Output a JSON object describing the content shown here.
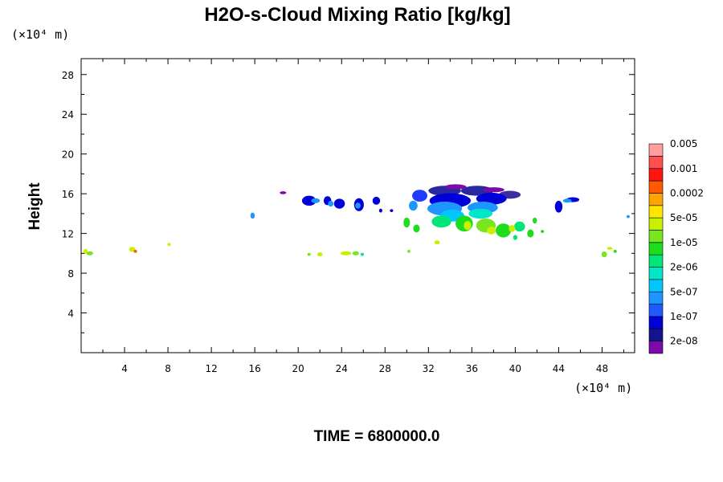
{
  "chart_data": {
    "type": "heatmap",
    "title": "H2O-s-Cloud Mixing Ratio [kg/kg]",
    "ylabel": "Height",
    "x_unit": "(×10⁴ m)",
    "y_unit": "(×10⁴ m)",
    "footer": "TIME = 6800000.0",
    "xlim": [
      0,
      51
    ],
    "ylim": [
      0,
      29.6
    ],
    "x_ticks": [
      {
        "v": 4,
        "label": "4"
      },
      {
        "v": 8,
        "label": "8"
      },
      {
        "v": 12,
        "label": "12"
      },
      {
        "v": 16,
        "label": "16"
      },
      {
        "v": 20,
        "label": "20"
      },
      {
        "v": 24,
        "label": "24"
      },
      {
        "v": 28,
        "label": "28"
      },
      {
        "v": 32,
        "label": "32"
      },
      {
        "v": 36,
        "label": "36"
      },
      {
        "v": 40,
        "label": "40"
      },
      {
        "v": 44,
        "label": "44"
      },
      {
        "v": 48,
        "label": "48"
      }
    ],
    "y_ticks": [
      {
        "v": 4,
        "label": "4"
      },
      {
        "v": 8,
        "label": "8"
      },
      {
        "v": 12,
        "label": "12"
      },
      {
        "v": 16,
        "label": "16"
      },
      {
        "v": 20,
        "label": "20"
      },
      {
        "v": 24,
        "label": "24"
      },
      {
        "v": 28,
        "label": "28"
      }
    ],
    "colorbar": {
      "colors": [
        "#7b0aa8",
        "#14148c",
        "#0000d8",
        "#1e5aff",
        "#1e96ff",
        "#00c8ff",
        "#00e6c8",
        "#00e678",
        "#1edc1e",
        "#78e61e",
        "#c8f000",
        "#ffe600",
        "#ffa500",
        "#ff5a00",
        "#ff1414",
        "#ff5050",
        "#ffa0a0"
      ],
      "labels": [
        "2e-08",
        "1e-07",
        "5e-07",
        "2e-06",
        "1e-05",
        "5e-05",
        "0.0002",
        "0.001",
        "0.005"
      ]
    },
    "blobs": [
      {
        "x": 31.2,
        "y": 15.8,
        "w": 1.4,
        "h": 1.2,
        "c": "#1e3cff"
      },
      {
        "x": 33.5,
        "y": 16.3,
        "w": 3.0,
        "h": 1.0,
        "c": "#2828a0"
      },
      {
        "x": 36.5,
        "y": 16.3,
        "w": 3.0,
        "h": 1.0,
        "c": "#2828a0"
      },
      {
        "x": 39.5,
        "y": 15.9,
        "w": 2.0,
        "h": 0.8,
        "c": "#3c2ca0"
      },
      {
        "x": 34.5,
        "y": 16.7,
        "w": 2.0,
        "h": 0.5,
        "c": "#7b0aa8"
      },
      {
        "x": 38.0,
        "y": 16.4,
        "w": 2.0,
        "h": 0.5,
        "c": "#7b0aa8"
      },
      {
        "x": 34.0,
        "y": 15.3,
        "w": 3.8,
        "h": 1.5,
        "c": "#0000d8"
      },
      {
        "x": 37.8,
        "y": 15.5,
        "w": 2.8,
        "h": 1.2,
        "c": "#0000d8"
      },
      {
        "x": 33.5,
        "y": 14.5,
        "w": 3.2,
        "h": 1.4,
        "c": "#1e96ff"
      },
      {
        "x": 37.0,
        "y": 14.6,
        "w": 2.8,
        "h": 1.2,
        "c": "#1e96ff"
      },
      {
        "x": 34.2,
        "y": 13.8,
        "w": 2.2,
        "h": 1.2,
        "c": "#00c8ff"
      },
      {
        "x": 36.8,
        "y": 14.0,
        "w": 2.2,
        "h": 1.0,
        "c": "#00e6c8"
      },
      {
        "x": 33.2,
        "y": 13.2,
        "w": 1.8,
        "h": 1.2,
        "c": "#00e678"
      },
      {
        "x": 35.3,
        "y": 13.0,
        "w": 1.6,
        "h": 1.6,
        "c": "#1edc1e"
      },
      {
        "x": 37.3,
        "y": 12.8,
        "w": 1.8,
        "h": 1.4,
        "c": "#78e61e"
      },
      {
        "x": 38.9,
        "y": 12.3,
        "w": 1.4,
        "h": 1.4,
        "c": "#1edc1e"
      },
      {
        "x": 40.4,
        "y": 12.7,
        "w": 1.0,
        "h": 1.0,
        "c": "#00e678"
      },
      {
        "x": 35.6,
        "y": 12.8,
        "w": 0.7,
        "h": 0.9,
        "c": "#c8f000"
      },
      {
        "x": 37.8,
        "y": 12.3,
        "w": 0.8,
        "h": 0.8,
        "c": "#c8f000"
      },
      {
        "x": 39.7,
        "y": 12.5,
        "w": 0.6,
        "h": 0.7,
        "c": "#c8f000"
      },
      {
        "x": 30.0,
        "y": 13.1,
        "w": 0.6,
        "h": 1.0,
        "c": "#1edc1e"
      },
      {
        "x": 30.9,
        "y": 12.5,
        "w": 0.6,
        "h": 0.8,
        "c": "#1edc1e"
      },
      {
        "x": 41.4,
        "y": 12.0,
        "w": 0.6,
        "h": 0.8,
        "c": "#1edc1e"
      },
      {
        "x": 41.8,
        "y": 13.3,
        "w": 0.4,
        "h": 0.6,
        "c": "#1edc1e"
      },
      {
        "x": 40.0,
        "y": 11.6,
        "w": 0.4,
        "h": 0.5,
        "c": "#00e678"
      },
      {
        "x": 42.5,
        "y": 12.2,
        "w": 0.3,
        "h": 0.3,
        "c": "#1edc1e"
      },
      {
        "x": 30.6,
        "y": 14.8,
        "w": 0.8,
        "h": 1.0,
        "c": "#1e96ff"
      },
      {
        "x": 21.0,
        "y": 15.3,
        "w": 1.3,
        "h": 1.0,
        "c": "#0000d8"
      },
      {
        "x": 22.7,
        "y": 15.3,
        "w": 0.7,
        "h": 0.9,
        "c": "#0000d8"
      },
      {
        "x": 23.0,
        "y": 15.0,
        "w": 0.5,
        "h": 0.6,
        "c": "#1e96ff"
      },
      {
        "x": 21.6,
        "y": 15.3,
        "w": 0.8,
        "h": 0.5,
        "c": "#1e96ff"
      },
      {
        "x": 23.8,
        "y": 15.0,
        "w": 1.0,
        "h": 1.0,
        "c": "#0000d8"
      },
      {
        "x": 25.6,
        "y": 14.9,
        "w": 0.9,
        "h": 1.3,
        "c": "#0000d8"
      },
      {
        "x": 25.5,
        "y": 14.8,
        "w": 0.5,
        "h": 0.6,
        "c": "#1e96ff"
      },
      {
        "x": 27.2,
        "y": 15.3,
        "w": 0.7,
        "h": 0.8,
        "c": "#0000d8"
      },
      {
        "x": 27.6,
        "y": 14.3,
        "w": 0.3,
        "h": 0.4,
        "c": "#0000d8"
      },
      {
        "x": 28.6,
        "y": 14.3,
        "w": 0.3,
        "h": 0.3,
        "c": "#0000d8"
      },
      {
        "x": 18.6,
        "y": 16.1,
        "w": 0.6,
        "h": 0.3,
        "c": "#7b0aa8"
      },
      {
        "x": 15.8,
        "y": 13.8,
        "w": 0.4,
        "h": 0.6,
        "c": "#1e96ff"
      },
      {
        "x": 44.0,
        "y": 14.7,
        "w": 0.7,
        "h": 1.2,
        "c": "#0000d8"
      },
      {
        "x": 45.3,
        "y": 15.4,
        "w": 1.2,
        "h": 0.5,
        "c": "#0000d8"
      },
      {
        "x": 44.8,
        "y": 15.3,
        "w": 0.8,
        "h": 0.4,
        "c": "#1e96ff"
      },
      {
        "x": 50.4,
        "y": 13.7,
        "w": 0.3,
        "h": 0.3,
        "c": "#1e96ff"
      },
      {
        "x": 0.4,
        "y": 10.2,
        "w": 0.4,
        "h": 0.5,
        "c": "#c8f000"
      },
      {
        "x": 0.8,
        "y": 10.0,
        "w": 0.6,
        "h": 0.4,
        "c": "#78e61e"
      },
      {
        "x": 4.7,
        "y": 10.4,
        "w": 0.6,
        "h": 0.5,
        "c": "#c8f000"
      },
      {
        "x": 5.0,
        "y": 10.2,
        "w": 0.3,
        "h": 0.3,
        "c": "#ff5a00"
      },
      {
        "x": 8.1,
        "y": 10.9,
        "w": 0.3,
        "h": 0.3,
        "c": "#c8f000"
      },
      {
        "x": 21.0,
        "y": 9.9,
        "w": 0.3,
        "h": 0.3,
        "c": "#78e61e"
      },
      {
        "x": 22.0,
        "y": 9.9,
        "w": 0.5,
        "h": 0.4,
        "c": "#c8f000"
      },
      {
        "x": 24.4,
        "y": 10.0,
        "w": 1.0,
        "h": 0.4,
        "c": "#c8f000"
      },
      {
        "x": 25.3,
        "y": 10.0,
        "w": 0.6,
        "h": 0.4,
        "c": "#78e61e"
      },
      {
        "x": 25.9,
        "y": 9.9,
        "w": 0.3,
        "h": 0.3,
        "c": "#00e678"
      },
      {
        "x": 30.2,
        "y": 10.2,
        "w": 0.3,
        "h": 0.3,
        "c": "#78e61e"
      },
      {
        "x": 32.8,
        "y": 11.1,
        "w": 0.5,
        "h": 0.4,
        "c": "#c8f000"
      },
      {
        "x": 48.2,
        "y": 9.9,
        "w": 0.5,
        "h": 0.6,
        "c": "#78e61e"
      },
      {
        "x": 48.7,
        "y": 10.5,
        "w": 0.5,
        "h": 0.3,
        "c": "#c8f000"
      },
      {
        "x": 49.2,
        "y": 10.2,
        "w": 0.3,
        "h": 0.3,
        "c": "#1edc1e"
      }
    ]
  }
}
